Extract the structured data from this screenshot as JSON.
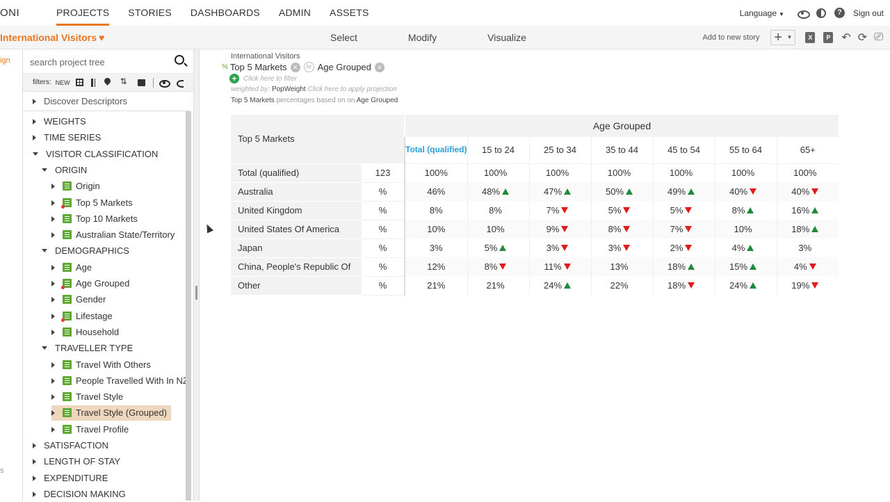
{
  "nav": {
    "logo": "ONI",
    "links": [
      "PROJECTS",
      "STORIES",
      "DASHBOARDS",
      "ADMIN",
      "ASSETS"
    ],
    "language_label": "Language",
    "signout_label": "Sign out"
  },
  "subbar": {
    "project_title": "International Visitors",
    "modes": [
      "Select",
      "Modify",
      "Visualize"
    ],
    "add_to_story": "Add to new story"
  },
  "sliver": {
    "text1": "ign",
    "text2": "s"
  },
  "tree": {
    "search_placeholder": "search project tree",
    "filters_label": "filters:",
    "new_label": "NEW",
    "discover": "Discover Descriptors",
    "nodes": [
      {
        "label": "WEIGHTS",
        "level": 0,
        "kind": "folder",
        "open": false
      },
      {
        "label": "TIME SERIES",
        "level": 0,
        "kind": "folder",
        "open": false
      },
      {
        "label": "VISITOR CLASSIFICATION",
        "level": 0,
        "kind": "folder",
        "open": true
      },
      {
        "label": "ORIGIN",
        "level": 1,
        "kind": "folder",
        "open": true
      },
      {
        "label": "Origin",
        "level": 2,
        "kind": "var"
      },
      {
        "label": "Top 5 Markets",
        "level": 2,
        "kind": "var",
        "dot": true
      },
      {
        "label": "Top 10 Markets",
        "level": 2,
        "kind": "var"
      },
      {
        "label": "Australian State/Territory",
        "level": 2,
        "kind": "var"
      },
      {
        "label": "DEMOGRAPHICS",
        "level": 1,
        "kind": "folder",
        "open": true
      },
      {
        "label": "Age",
        "level": 2,
        "kind": "var"
      },
      {
        "label": "Age Grouped",
        "level": 2,
        "kind": "var",
        "dot": true
      },
      {
        "label": "Gender",
        "level": 2,
        "kind": "var"
      },
      {
        "label": "Lifestage",
        "level": 2,
        "kind": "var",
        "dot": true
      },
      {
        "label": "Household",
        "level": 2,
        "kind": "var"
      },
      {
        "label": "TRAVELLER TYPE",
        "level": 1,
        "kind": "folder",
        "open": true
      },
      {
        "label": "Travel With Others",
        "level": 2,
        "kind": "var"
      },
      {
        "label": "People Travelled With In NZ",
        "level": 2,
        "kind": "var"
      },
      {
        "label": "Travel Style",
        "level": 2,
        "kind": "var"
      },
      {
        "label": "Travel Style (Grouped)",
        "level": 2,
        "kind": "var",
        "selected": true
      },
      {
        "label": "Travel Profile",
        "level": 2,
        "kind": "var"
      },
      {
        "label": "SATISFACTION",
        "level": 0,
        "kind": "folder",
        "open": false
      },
      {
        "label": "LENGTH OF STAY",
        "level": 0,
        "kind": "folder",
        "open": false
      },
      {
        "label": "EXPENDITURE",
        "level": 0,
        "kind": "folder",
        "open": false
      },
      {
        "label": "DECISION MAKING",
        "level": 0,
        "kind": "folder",
        "open": false
      }
    ]
  },
  "spec": {
    "dataset": "International Visitors",
    "pct_symbol": "%",
    "row_var": "Top 5 Markets",
    "by_label": "by",
    "col_var": "Age Grouped",
    "filter_hint": "Click here to filter",
    "weighted_by_label": "weighted by:",
    "weight": "PopWeight",
    "projection_hint": "Click here to apply projection",
    "based_mid": "percentages based on",
    "based_row": "Top 5 Markets",
    "based_col": "Age Grouped"
  },
  "table": {
    "corner_label": "Top 5 Markets",
    "banner": "Age Grouped",
    "columns": [
      "Total (qualified)",
      "15 to 24",
      "25 to 34",
      "35 to 44",
      "45 to 54",
      "55 to 64",
      "65+"
    ],
    "rows": [
      {
        "label": "Total (qualified)",
        "stat": "123",
        "cells": [
          {
            "v": "100%"
          },
          {
            "v": "100%"
          },
          {
            "v": "100%"
          },
          {
            "v": "100%"
          },
          {
            "v": "100%"
          },
          {
            "v": "100%"
          },
          {
            "v": "100%"
          }
        ]
      },
      {
        "label": "Australia",
        "stat": "%",
        "cells": [
          {
            "v": "46%"
          },
          {
            "v": "48%",
            "sig": "up"
          },
          {
            "v": "47%",
            "sig": "up"
          },
          {
            "v": "50%",
            "sig": "up"
          },
          {
            "v": "49%",
            "sig": "up"
          },
          {
            "v": "40%",
            "sig": "down"
          },
          {
            "v": "40%",
            "sig": "down"
          }
        ]
      },
      {
        "label": "United Kingdom",
        "stat": "%",
        "cells": [
          {
            "v": "8%"
          },
          {
            "v": "8%"
          },
          {
            "v": "7%",
            "sig": "down"
          },
          {
            "v": "5%",
            "sig": "down"
          },
          {
            "v": "5%",
            "sig": "down"
          },
          {
            "v": "8%",
            "sig": "up"
          },
          {
            "v": "16%",
            "sig": "up"
          }
        ]
      },
      {
        "label": "United States Of America",
        "stat": "%",
        "cells": [
          {
            "v": "10%"
          },
          {
            "v": "10%"
          },
          {
            "v": "9%",
            "sig": "down"
          },
          {
            "v": "8%",
            "sig": "down"
          },
          {
            "v": "7%",
            "sig": "down"
          },
          {
            "v": "10%"
          },
          {
            "v": "18%",
            "sig": "up"
          }
        ]
      },
      {
        "label": "Japan",
        "stat": "%",
        "cells": [
          {
            "v": "3%"
          },
          {
            "v": "5%",
            "sig": "up"
          },
          {
            "v": "3%",
            "sig": "down"
          },
          {
            "v": "3%",
            "sig": "down"
          },
          {
            "v": "2%",
            "sig": "down"
          },
          {
            "v": "4%",
            "sig": "up"
          },
          {
            "v": "3%"
          }
        ]
      },
      {
        "label": "China, People's Republic Of",
        "stat": "%",
        "cells": [
          {
            "v": "12%"
          },
          {
            "v": "8%",
            "sig": "down"
          },
          {
            "v": "11%",
            "sig": "down"
          },
          {
            "v": "13%"
          },
          {
            "v": "18%",
            "sig": "up"
          },
          {
            "v": "15%",
            "sig": "up"
          },
          {
            "v": "4%",
            "sig": "down"
          }
        ]
      },
      {
        "label": "Other",
        "stat": "%",
        "cells": [
          {
            "v": "21%"
          },
          {
            "v": "21%"
          },
          {
            "v": "24%",
            "sig": "up"
          },
          {
            "v": "22%"
          },
          {
            "v": "18%",
            "sig": "down"
          },
          {
            "v": "24%",
            "sig": "up"
          },
          {
            "v": "19%",
            "sig": "down"
          }
        ]
      }
    ]
  },
  "colors": {
    "accent": "#e87722",
    "total_header": "#2b9fd8",
    "sig_up": "#1e8a3a",
    "sig_down": "#e01b1b",
    "var_icon": "#5fa831"
  }
}
